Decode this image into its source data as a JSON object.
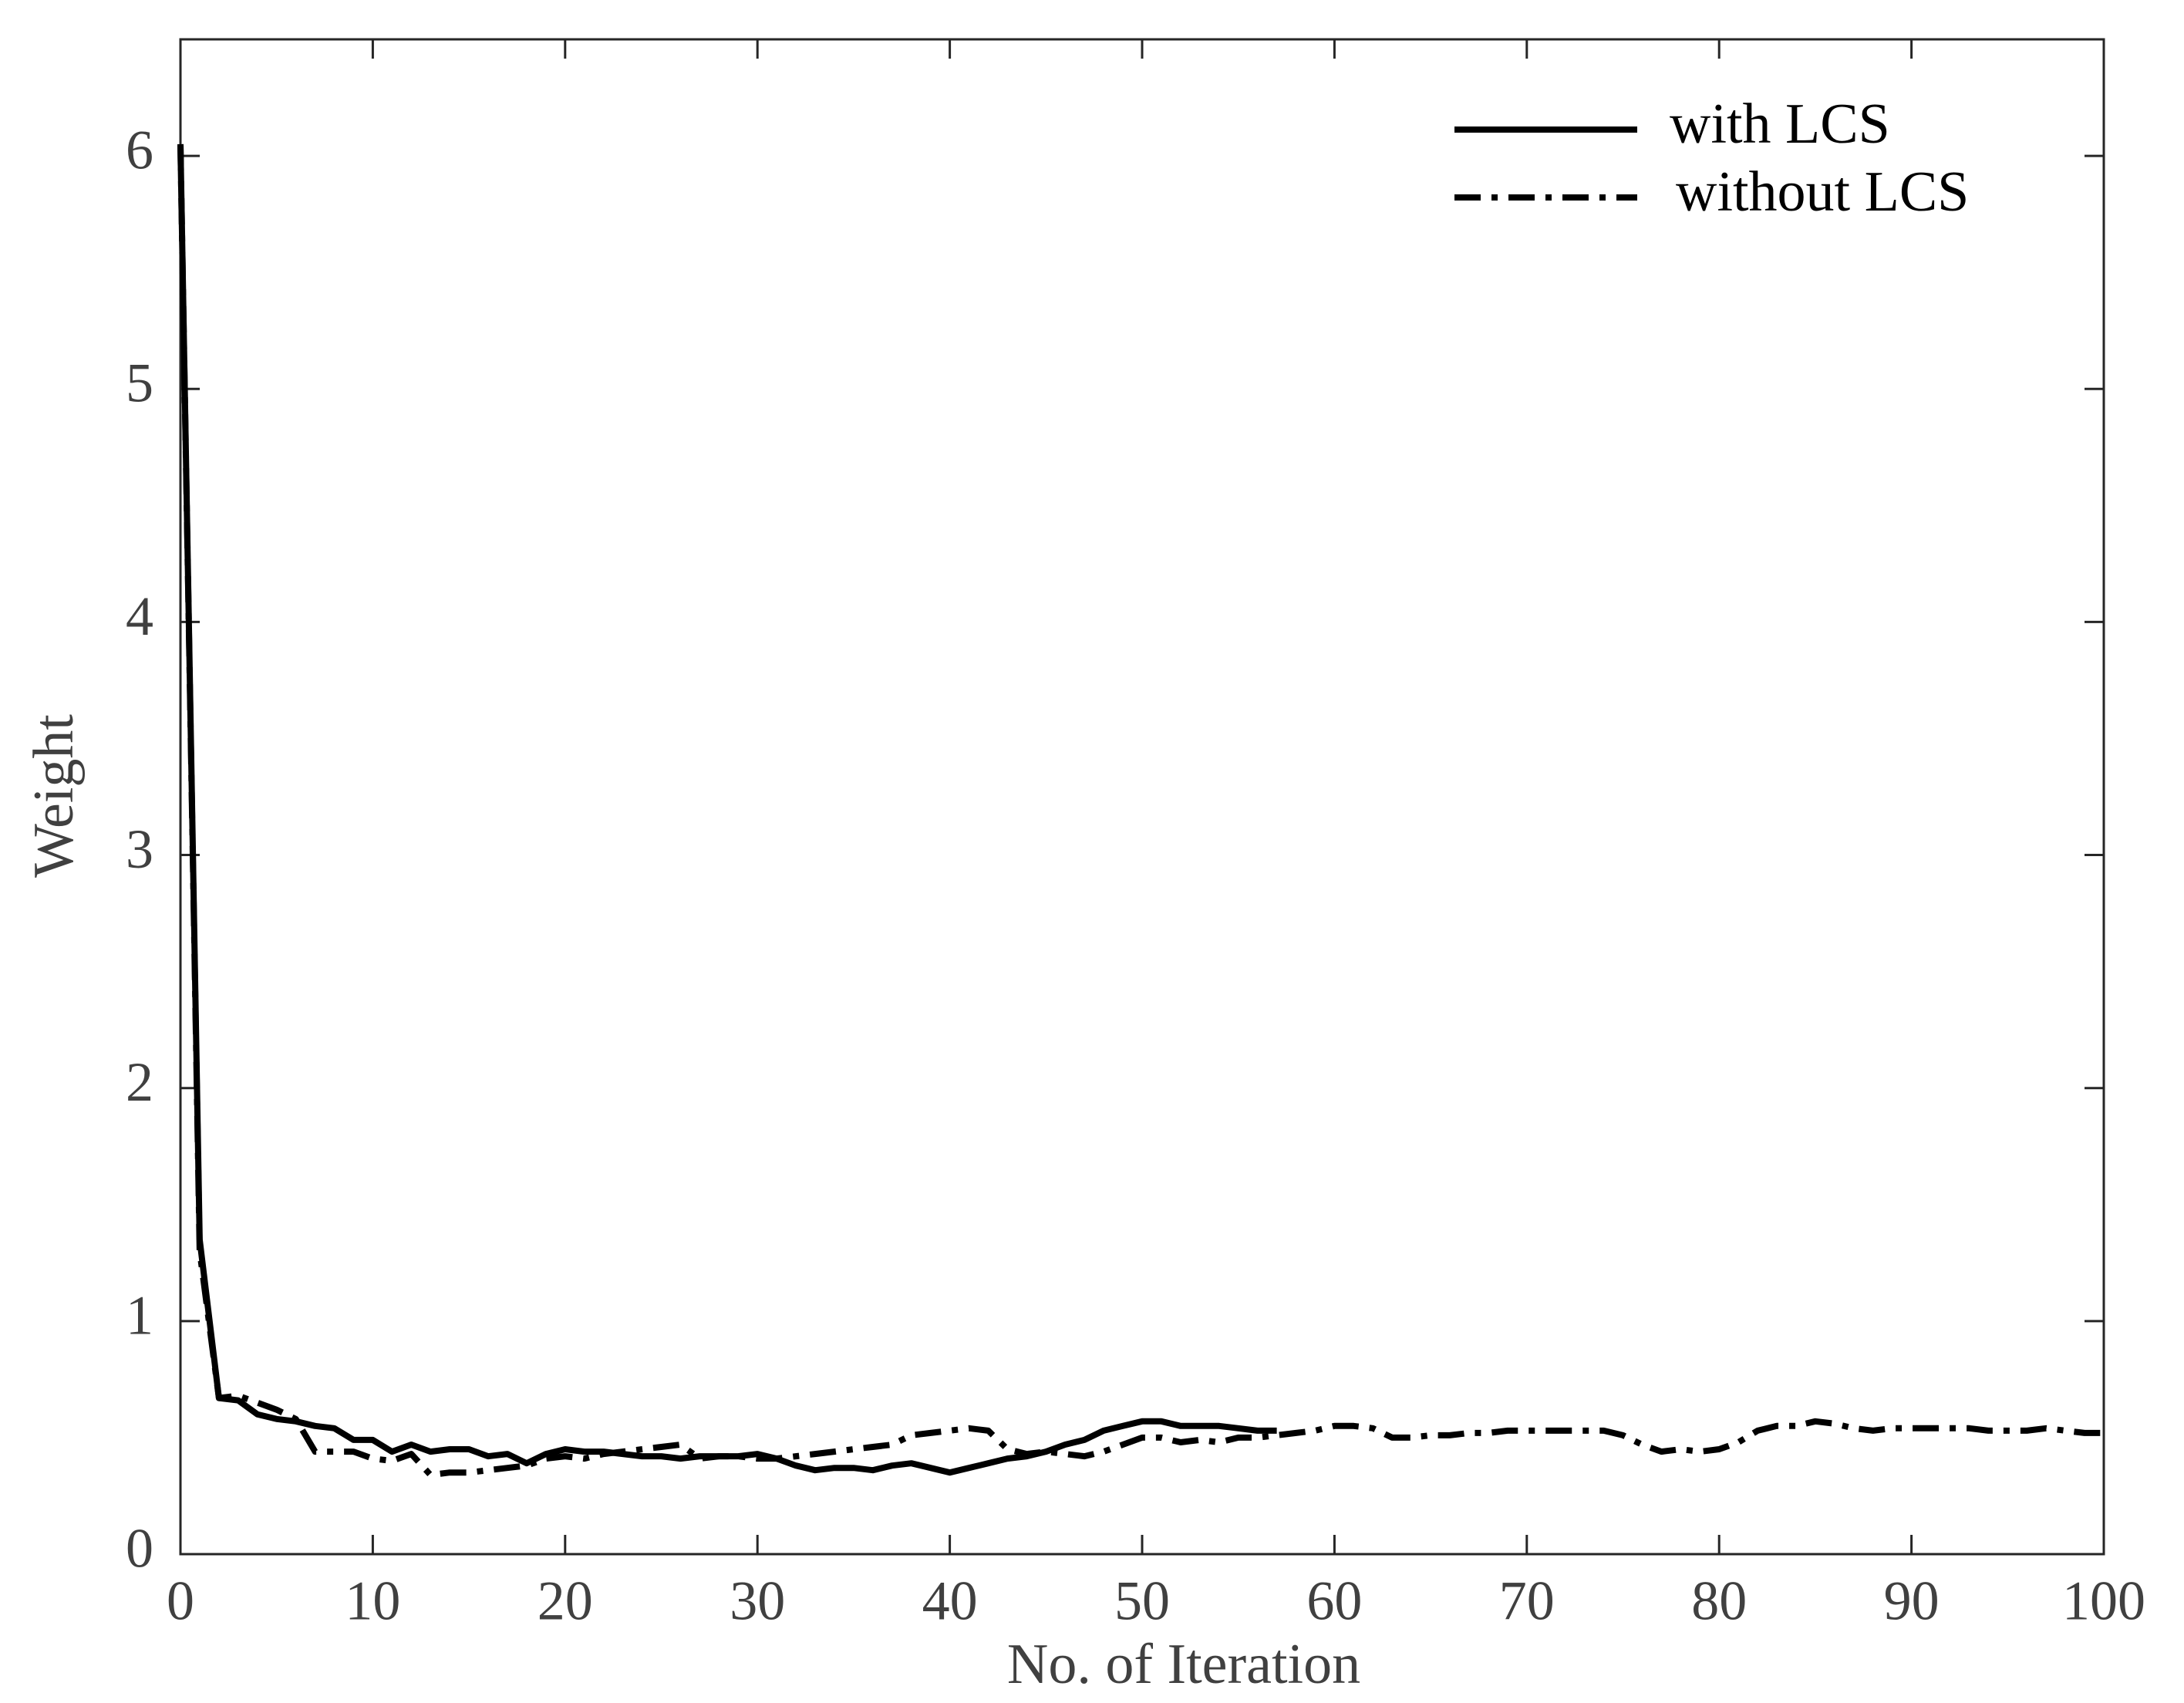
{
  "chart_data": {
    "type": "line",
    "x_label": "No. of Iteration",
    "y_label": "Weight",
    "x": [
      0,
      1,
      2,
      3,
      4,
      5,
      6,
      7,
      8,
      9,
      10,
      11,
      12,
      13,
      14,
      15,
      16,
      17,
      18,
      19,
      20,
      21,
      22,
      23,
      24,
      25,
      26,
      27,
      28,
      29,
      30,
      31,
      32,
      33,
      34,
      35,
      36,
      37,
      38,
      39,
      40,
      41,
      42,
      43,
      44,
      45,
      46,
      47,
      48,
      49,
      50,
      51,
      52,
      53,
      54,
      55,
      56,
      57,
      58,
      59,
      60,
      61,
      62,
      63,
      64,
      65,
      66,
      67,
      68,
      69,
      70,
      71,
      72,
      73,
      74,
      75,
      76,
      77,
      78,
      79,
      80,
      81,
      82,
      83,
      84,
      85,
      86,
      87,
      88,
      89,
      90,
      91,
      92,
      93,
      94,
      95,
      96,
      97,
      98,
      99,
      100
    ],
    "series": [
      {
        "name": "with LCS",
        "color": "#000000",
        "dash": "solid",
        "values": [
          6.05,
          1.35,
          0.67,
          0.66,
          0.6,
          0.58,
          0.57,
          0.55,
          0.54,
          0.49,
          0.49,
          0.44,
          0.47,
          0.44,
          0.45,
          0.45,
          0.42,
          0.43,
          0.39,
          0.43,
          0.45,
          0.44,
          0.44,
          0.43,
          0.42,
          0.42,
          0.41,
          0.42,
          0.42,
          0.42,
          0.43,
          0.41,
          0.38,
          0.36,
          0.37,
          0.37,
          0.36,
          0.38,
          0.39,
          0.37,
          0.35,
          0.37,
          0.39,
          0.41,
          0.42,
          0.44,
          0.47,
          0.49,
          0.53,
          0.55,
          0.57,
          0.57,
          0.55,
          0.55,
          0.55,
          0.54,
          0.53,
          0.53,
          null,
          null,
          null,
          null,
          null,
          null,
          null,
          null,
          null,
          null,
          null,
          null,
          null,
          null,
          null,
          null,
          null,
          null,
          null,
          null,
          null,
          null,
          null,
          null,
          null,
          null,
          null,
          null,
          null,
          null,
          null,
          null,
          null,
          null,
          null,
          null,
          null,
          null,
          null,
          null,
          null,
          null,
          null
        ]
      },
      {
        "name": "without LCS",
        "color": "#000000",
        "dash": "dash-dot",
        "values": [
          6.05,
          1.3,
          0.67,
          0.68,
          0.65,
          0.62,
          0.58,
          0.44,
          0.44,
          0.44,
          0.41,
          0.4,
          0.43,
          0.34,
          0.35,
          0.35,
          0.36,
          0.37,
          0.38,
          0.41,
          0.42,
          0.41,
          0.43,
          0.44,
          0.45,
          0.46,
          0.47,
          0.41,
          0.42,
          0.42,
          0.41,
          0.41,
          0.42,
          0.43,
          0.44,
          0.45,
          0.46,
          0.47,
          0.51,
          0.52,
          0.53,
          0.54,
          0.53,
          0.45,
          0.43,
          0.44,
          0.43,
          0.42,
          0.44,
          0.47,
          0.5,
          0.5,
          0.48,
          0.49,
          0.48,
          0.5,
          0.5,
          0.51,
          0.52,
          0.53,
          0.55,
          0.55,
          0.54,
          0.5,
          0.5,
          0.51,
          0.51,
          0.52,
          0.52,
          0.53,
          0.53,
          0.53,
          0.53,
          0.53,
          0.53,
          0.51,
          0.47,
          0.44,
          0.45,
          0.44,
          0.45,
          0.48,
          0.53,
          0.55,
          0.55,
          0.57,
          0.56,
          0.54,
          0.53,
          0.54,
          0.54,
          0.54,
          0.54,
          0.54,
          0.53,
          0.53,
          0.53,
          0.54,
          0.53,
          0.52,
          0.52
        ]
      }
    ],
    "xlim": [
      0,
      100
    ],
    "xticks": [
      0,
      10,
      20,
      30,
      40,
      50,
      60,
      70,
      80,
      90,
      100
    ],
    "ylim": [
      0,
      6.5
    ],
    "yticks": [
      0,
      1,
      2,
      3,
      4,
      5,
      6
    ],
    "legend": "upper right",
    "grid": false
  }
}
